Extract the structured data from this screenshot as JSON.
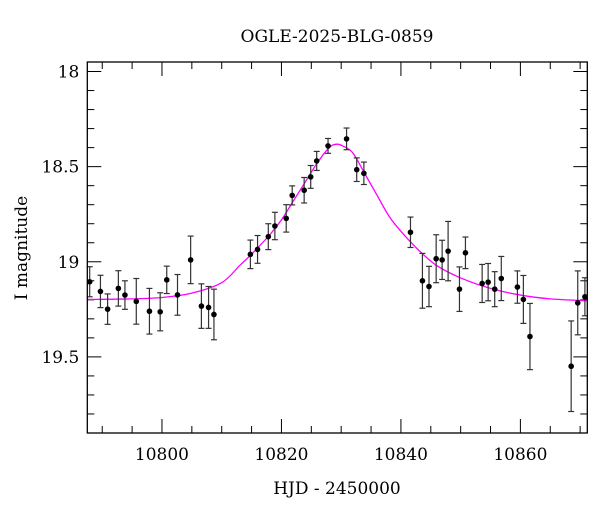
{
  "chart_data": {
    "type": "scatter",
    "title": "OGLE-2025-BLG-0859",
    "xlabel": "HJD - 2450000",
    "ylabel": "I magnitude",
    "xlim": [
      10787.5,
      10871.2
    ],
    "ylim": [
      19.9,
      17.95
    ],
    "y_inverted": true,
    "x_ticks": [
      10800,
      10820,
      10840,
      10860
    ],
    "y_ticks": [
      18,
      18.5,
      19,
      19.5
    ],
    "x_tick_labels": [
      "10800",
      "10820",
      "10840",
      "10860"
    ],
    "y_tick_labels": [
      "18",
      "18.5",
      "19",
      "19.5"
    ],
    "x_minor_step": 5,
    "y_minor_step": 0.1,
    "grid": false,
    "colors": {
      "points": "#000000",
      "errorbars": "#333333",
      "model": "#ff00ff"
    },
    "series": [
      {
        "type": "errorbar-scatter",
        "points": [
          [
            10787.9,
            19.105,
            0.079
          ],
          [
            10789.7,
            19.156,
            0.085
          ],
          [
            10790.9,
            19.249,
            0.08
          ],
          [
            10792.7,
            19.14,
            0.093
          ],
          [
            10793.8,
            19.175,
            0.075
          ],
          [
            10795.7,
            19.208,
            0.12
          ],
          [
            10797.9,
            19.26,
            0.12
          ],
          [
            10799.7,
            19.263,
            0.1
          ],
          [
            10800.8,
            19.095,
            0.072
          ],
          [
            10802.6,
            19.174,
            0.107
          ],
          [
            10804.8,
            18.99,
            0.125
          ],
          [
            10806.6,
            19.233,
            0.117
          ],
          [
            10807.8,
            19.24,
            0.11
          ],
          [
            10808.7,
            19.277,
            0.133
          ],
          [
            10814.8,
            18.961,
            0.075
          ],
          [
            10816.0,
            18.935,
            0.073
          ],
          [
            10817.8,
            18.868,
            0.068
          ],
          [
            10818.9,
            18.812,
            0.072
          ],
          [
            10820.8,
            18.772,
            0.072
          ],
          [
            10821.8,
            18.651,
            0.05
          ],
          [
            10823.8,
            18.624,
            0.067
          ],
          [
            10824.9,
            18.554,
            0.06
          ],
          [
            10825.9,
            18.47,
            0.05
          ],
          [
            10827.8,
            18.391,
            0.039
          ],
          [
            10830.9,
            18.354,
            0.057
          ],
          [
            10832.6,
            18.516,
            0.062
          ],
          [
            10833.8,
            18.535,
            0.059
          ],
          [
            10841.6,
            18.845,
            0.08
          ],
          [
            10843.6,
            19.1,
            0.144
          ],
          [
            10844.7,
            19.13,
            0.106
          ],
          [
            10845.9,
            18.984,
            0.126
          ],
          [
            10846.9,
            18.99,
            0.103
          ],
          [
            10847.9,
            18.944,
            0.156
          ],
          [
            10849.8,
            19.144,
            0.117
          ],
          [
            10850.8,
            18.953,
            0.083
          ],
          [
            10853.6,
            19.114,
            0.1
          ],
          [
            10854.6,
            19.107,
            0.098
          ],
          [
            10855.7,
            19.144,
            0.092
          ],
          [
            10856.8,
            19.088,
            0.116
          ],
          [
            10859.5,
            19.133,
            0.085
          ],
          [
            10860.5,
            19.198,
            0.126
          ],
          [
            10861.6,
            19.393,
            0.174
          ],
          [
            10868.5,
            19.549,
            0.238
          ],
          [
            10869.6,
            19.216,
            0.168
          ],
          [
            10870.8,
            19.184,
            0.1
          ]
        ]
      },
      {
        "type": "line",
        "points": [
          [
            10787.5,
            19.198
          ],
          [
            10795,
            19.195
          ],
          [
            10800,
            19.188
          ],
          [
            10805,
            19.165
          ],
          [
            10810,
            19.11
          ],
          [
            10813,
            19.02
          ],
          [
            10815,
            18.96
          ],
          [
            10818,
            18.86
          ],
          [
            10820,
            18.78
          ],
          [
            10822,
            18.68
          ],
          [
            10824,
            18.58
          ],
          [
            10826,
            18.48
          ],
          [
            10828,
            18.4
          ],
          [
            10829.3,
            18.382
          ],
          [
            10830.5,
            18.395
          ],
          [
            10832,
            18.43
          ],
          [
            10834,
            18.54
          ],
          [
            10836,
            18.65
          ],
          [
            10838,
            18.76
          ],
          [
            10840,
            18.84
          ],
          [
            10843,
            18.94
          ],
          [
            10846,
            19.02
          ],
          [
            10850,
            19.085
          ],
          [
            10855,
            19.14
          ],
          [
            10860,
            19.175
          ],
          [
            10865,
            19.195
          ],
          [
            10871.2,
            19.205
          ]
        ]
      }
    ]
  }
}
